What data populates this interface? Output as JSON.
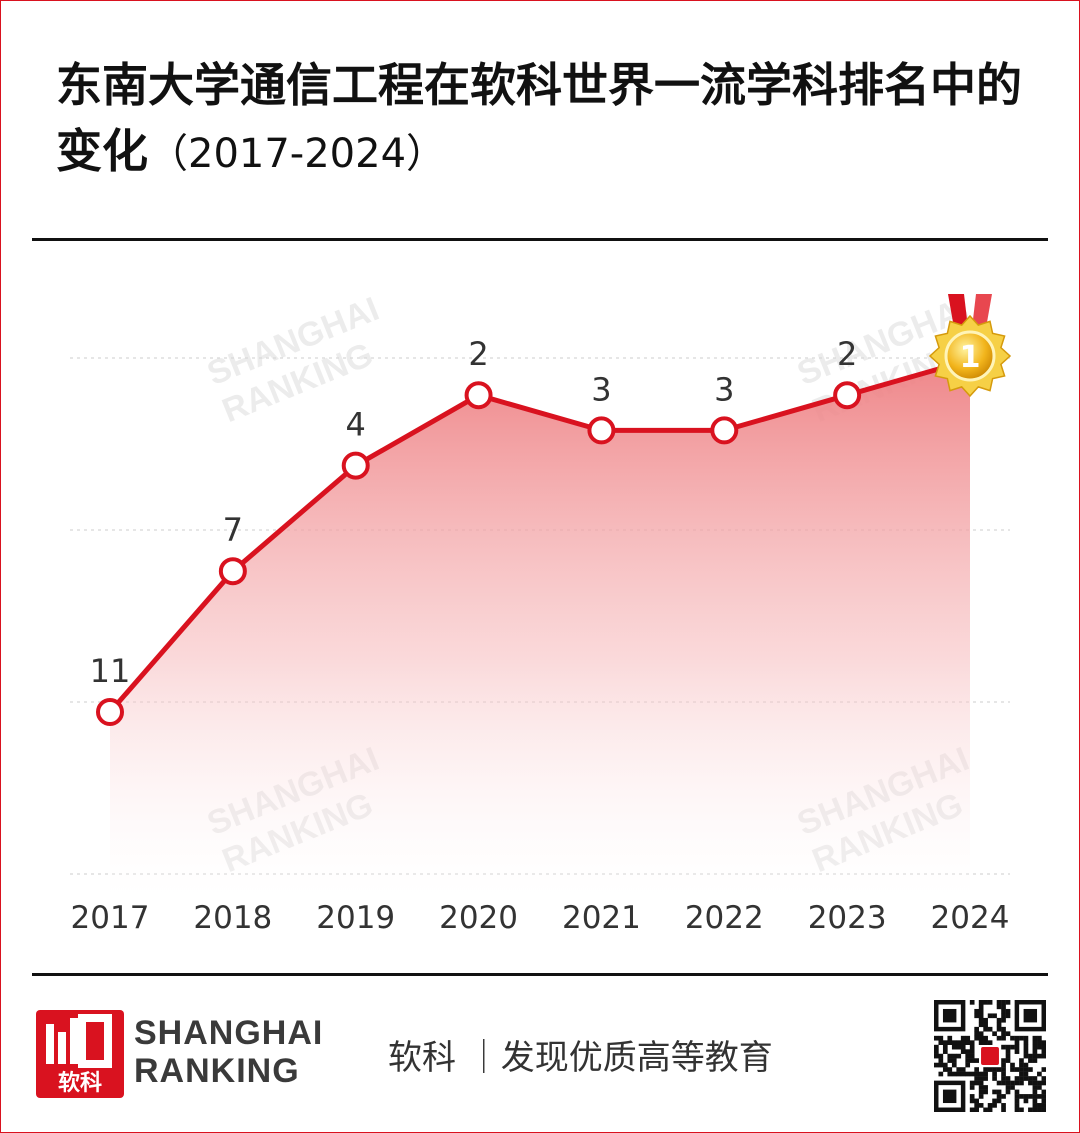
{
  "title": {
    "main": "东南大学通信工程在软科世界一流学科排名中的变化",
    "years": "（2017-2024）"
  },
  "chart_data": {
    "type": "area",
    "categories": [
      "2017",
      "2018",
      "2019",
      "2020",
      "2021",
      "2022",
      "2023",
      "2024"
    ],
    "series": [
      {
        "values": [
          11,
          7,
          4,
          2,
          3,
          3,
          2,
          1
        ]
      }
    ],
    "data_labels": [
      "11",
      "7",
      "4",
      "2",
      "3",
      "3",
      "2",
      "1"
    ],
    "y_reversed": true,
    "grid": true,
    "line_color": "#d9121f",
    "fill_color": "#ef8a8c",
    "final_marker": "gold-medal-icon"
  },
  "footer": {
    "brand_line1": "SHANGHAI",
    "brand_line2": "RANKING",
    "brand_cn": "软科",
    "slogan": "软科 ｜发现优质高等教育",
    "qr_icon": "qr-code-icon"
  },
  "watermark": {
    "line1": "SHANGHAI",
    "line2": "RANKING"
  }
}
